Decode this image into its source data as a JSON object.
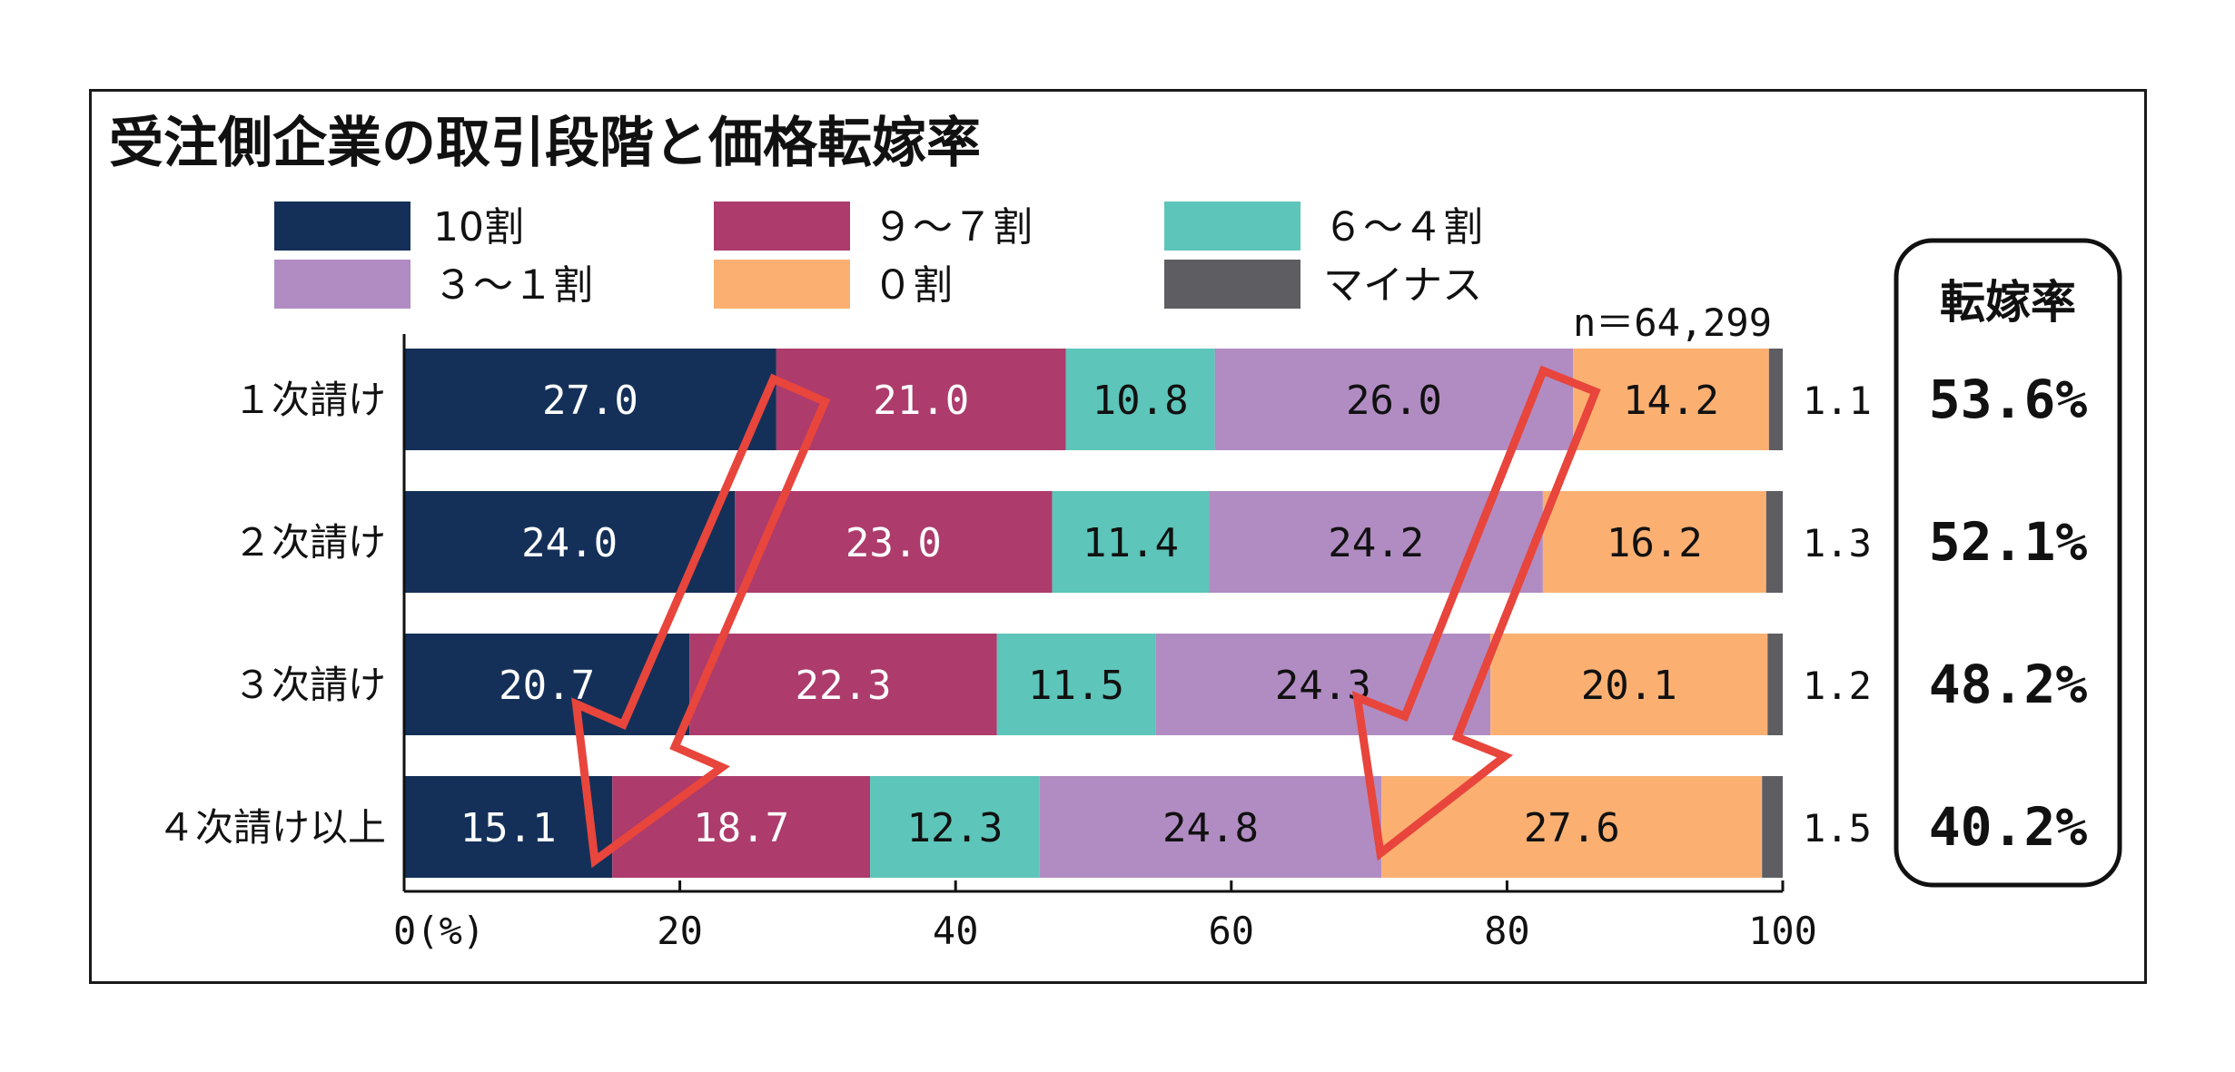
{
  "chart_data": {
    "type": "bar",
    "orientation": "horizontal-stacked",
    "title": "受注側企業の取引段階と価格転嫁率",
    "n_label": "n＝64,299",
    "categories": [
      "１次請け",
      "２次請け",
      "３次請け",
      "４次請け以上"
    ],
    "series": [
      {
        "name": "10割",
        "color": "#143058",
        "label_color": "#ffffff",
        "values": [
          27.0,
          24.0,
          20.7,
          15.1
        ]
      },
      {
        "name": "９～７割",
        "color": "#ad3b6c",
        "label_color": "#ffffff",
        "values": [
          21.0,
          23.0,
          22.3,
          18.7
        ]
      },
      {
        "name": "６～４割",
        "color": "#5dc5b9",
        "label_color": "#111111",
        "values": [
          10.8,
          11.4,
          11.5,
          12.3
        ]
      },
      {
        "name": "３～１割",
        "color": "#b18cc2",
        "label_color": "#111111",
        "values": [
          26.0,
          24.2,
          24.3,
          24.8
        ]
      },
      {
        "name": "０割",
        "color": "#fbb072",
        "label_color": "#111111",
        "values": [
          14.2,
          16.2,
          20.1,
          27.6
        ]
      },
      {
        "name": "マイナス",
        "color": "#5d5d62",
        "label_color": "#111111",
        "values": [
          1.1,
          1.3,
          1.2,
          1.5
        ]
      }
    ],
    "value_labels": [
      [
        "27.0",
        "21.0",
        "10.8",
        "26.0",
        "14.2",
        "1.1"
      ],
      [
        "24.0",
        "23.0",
        "11.4",
        "24.2",
        "16.2",
        "1.3"
      ],
      [
        "20.7",
        "22.3",
        "11.5",
        "24.3",
        "20.1",
        "1.2"
      ],
      [
        "15.1",
        "18.7",
        "12.3",
        "24.8",
        "27.6",
        "1.5"
      ]
    ],
    "xlim": [
      0,
      100
    ],
    "xticks": [
      0,
      20,
      40,
      60,
      80,
      100
    ],
    "xtick_labels": [
      "0(%)",
      "20",
      "40",
      "60",
      "80",
      "100"
    ],
    "pass_through_rate": {
      "title": "転嫁率",
      "values": [
        "53.6%",
        "52.1%",
        "48.2%",
        "40.2%"
      ]
    },
    "arrow_color": "#e8453c"
  }
}
